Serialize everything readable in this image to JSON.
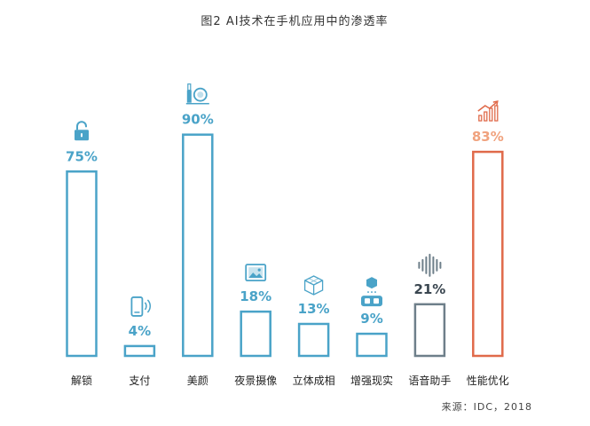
{
  "chart_data": {
    "type": "bar",
    "title": "图2 AI技术在手机应用中的渗透率",
    "categories": [
      "解锁",
      "支付",
      "美颜",
      "夜景摄像",
      "立体成相",
      "增强现实",
      "语音助手",
      "性能优化"
    ],
    "values": [
      75,
      4,
      90,
      18,
      13,
      9,
      21,
      83
    ],
    "value_labels": [
      "75%",
      "4%",
      "90%",
      "18%",
      "13%",
      "9%",
      "21%",
      "83%"
    ],
    "unit": "%",
    "ylim": [
      0,
      100
    ],
    "grid": false,
    "legend": "none",
    "icons": [
      "lock-icon",
      "phone-nfc-icon",
      "makeup-icon",
      "night-photo-icon",
      "cube-3d-icon",
      "ar-headset-icon",
      "voice-wave-icon",
      "growth-chart-icon"
    ],
    "colors": [
      "#4aa3c8",
      "#4aa3c8",
      "#4aa3c8",
      "#4aa3c8",
      "#4aa3c8",
      "#4aa3c8",
      "#6e7f8a",
      "#e06a4a"
    ],
    "value_colors": [
      "#4aa3c8",
      "#4aa3c8",
      "#4aa3c8",
      "#4aa3c8",
      "#4aa3c8",
      "#4aa3c8",
      "#3a4650",
      "#f0a27e"
    ],
    "source": "来源：IDC，2018"
  }
}
